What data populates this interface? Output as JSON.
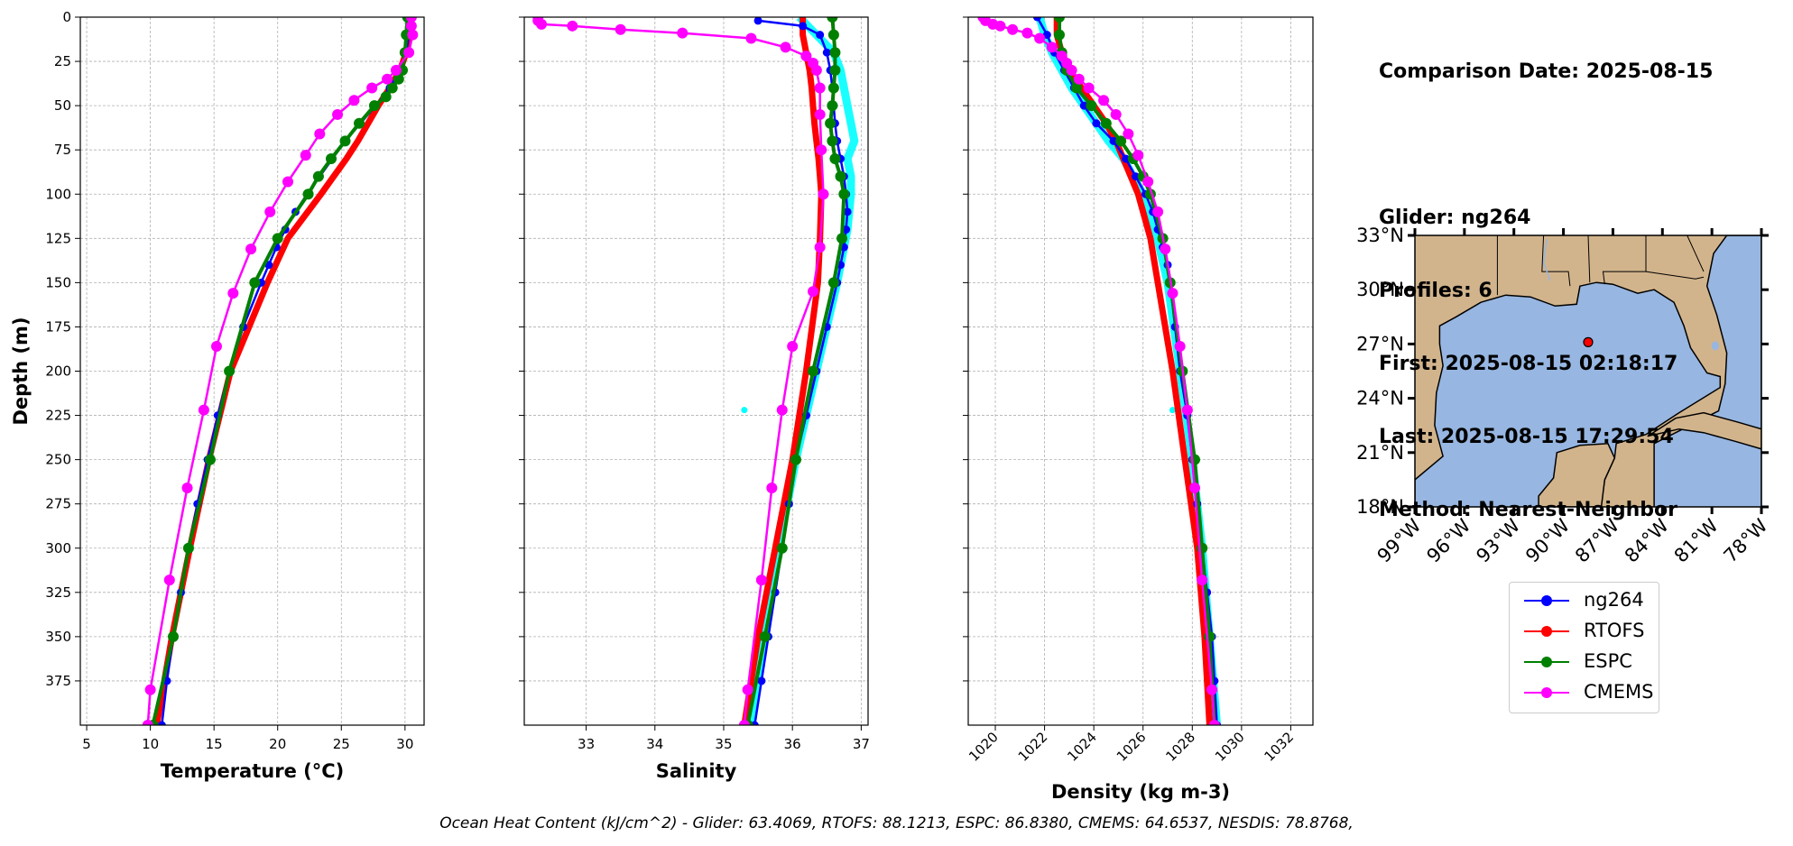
{
  "info": {
    "comparison_date": "Comparison Date: 2025-08-15",
    "glider": "Glider: ng264",
    "profiles": "Profiles: 6",
    "first": "First: 2025-08-15 02:18:17",
    "last": "Last: 2025-08-15 17:29:54",
    "method": "Method: Nearest-Neighbor"
  },
  "footer": "Ocean Heat Content (kJ/cm^2) - Glider: 63.4069,  RTOFS: 88.1213,  ESPC: 86.8380,  CMEMS: 64.6537,  NESDIS: 78.8768,",
  "legend": [
    {
      "label": "ng264",
      "color": "#0000ff"
    },
    {
      "label": "RTOFS",
      "color": "#ff0000"
    },
    {
      "label": "ESPC",
      "color": "#008000"
    },
    {
      "label": "CMEMS",
      "color": "#ff00ff"
    }
  ],
  "colors": {
    "glider_profiles": "#00ffff",
    "land": "#d2b48c",
    "ocean": "#97b6e1",
    "grid": "#b0b0b0",
    "station": "#ff0000"
  },
  "chart_data": [
    {
      "type": "line",
      "title": "",
      "xlabel": "Temperature (°C)",
      "ylabel": "Depth (m)",
      "xlim": [
        4.5,
        31.5
      ],
      "ylim": [
        400,
        0
      ],
      "xticks": [
        5,
        10,
        15,
        20,
        25,
        30
      ],
      "yticks": [
        0,
        25,
        50,
        75,
        100,
        125,
        150,
        175,
        200,
        225,
        250,
        275,
        300,
        325,
        350,
        375
      ],
      "grid": true,
      "series": [
        {
          "name": "ng264",
          "depth": [
            0,
            10,
            20,
            30,
            40,
            50,
            60,
            70,
            80,
            90,
            100,
            110,
            120,
            130,
            140,
            150,
            175,
            200,
            225,
            250,
            275,
            300,
            325,
            350,
            375,
            400
          ],
          "values": [
            30.4,
            30.3,
            30.1,
            29.6,
            28.8,
            27.7,
            26.5,
            25.3,
            24.3,
            23.3,
            22.3,
            21.4,
            20.6,
            19.9,
            19.3,
            18.7,
            17.3,
            16.2,
            15.3,
            14.5,
            13.7,
            13.0,
            12.4,
            11.8,
            11.3,
            10.9
          ]
        },
        {
          "name": "RTOFS",
          "depth": [
            0,
            10,
            20,
            30,
            40,
            50,
            60,
            70,
            80,
            90,
            100,
            125,
            150,
            200,
            250,
            300,
            350,
            400
          ],
          "values": [
            30.3,
            30.3,
            30.1,
            29.6,
            28.8,
            27.9,
            27.1,
            26.3,
            25.4,
            24.4,
            23.4,
            20.8,
            19.2,
            16.3,
            14.6,
            13.1,
            11.7,
            10.5
          ]
        },
        {
          "name": "ESPC",
          "depth": [
            0,
            10,
            20,
            30,
            35,
            40,
            45,
            50,
            60,
            70,
            80,
            90,
            100,
            125,
            150,
            200,
            250,
            300,
            350,
            400
          ],
          "values": [
            30.2,
            30.1,
            30.0,
            29.8,
            29.5,
            29.0,
            28.5,
            27.6,
            26.4,
            25.3,
            24.2,
            23.2,
            22.4,
            20.0,
            18.2,
            16.2,
            14.7,
            13.0,
            11.8,
            10.2
          ]
        },
        {
          "name": "CMEMS",
          "depth": [
            0,
            5,
            10,
            20,
            30,
            35,
            40,
            47,
            55,
            66,
            78,
            93,
            110,
            131,
            156,
            186,
            222,
            266,
            318,
            380,
            400
          ],
          "values": [
            30.5,
            30.5,
            30.6,
            30.3,
            29.3,
            28.6,
            27.4,
            26.0,
            24.7,
            23.3,
            22.2,
            20.8,
            19.4,
            17.9,
            16.5,
            15.2,
            14.2,
            12.9,
            11.5,
            10.0,
            9.8
          ]
        }
      ]
    },
    {
      "type": "line",
      "title": "",
      "xlabel": "Salinity",
      "ylabel": "",
      "xlim": [
        32.1,
        37.1
      ],
      "ylim": [
        400,
        0
      ],
      "xticks": [
        33,
        34,
        35,
        36,
        37
      ],
      "yticks": [
        0,
        25,
        50,
        75,
        100,
        125,
        150,
        175,
        200,
        225,
        250,
        275,
        300,
        325,
        350,
        375
      ],
      "grid": true,
      "series": [
        {
          "name": "ng264",
          "depth": [
            2,
            5,
            10,
            20,
            30,
            40,
            50,
            60,
            70,
            80,
            90,
            100,
            110,
            120,
            130,
            140,
            150,
            175,
            200,
            225,
            250,
            275,
            300,
            325,
            350,
            375,
            400
          ],
          "values": [
            35.5,
            36.15,
            36.4,
            36.5,
            36.55,
            36.58,
            36.6,
            36.62,
            36.65,
            36.7,
            36.75,
            36.78,
            36.8,
            36.78,
            36.75,
            36.7,
            36.65,
            36.5,
            36.35,
            36.2,
            36.05,
            35.95,
            35.85,
            35.75,
            35.65,
            35.55,
            35.45
          ]
        },
        {
          "name": "RTOFS",
          "depth": [
            0,
            10,
            20,
            30,
            40,
            50,
            60,
            70,
            80,
            90,
            100,
            125,
            150,
            200,
            250,
            300,
            350,
            400
          ],
          "values": [
            36.15,
            36.15,
            36.2,
            36.25,
            36.28,
            36.3,
            36.32,
            36.35,
            36.38,
            36.4,
            36.42,
            36.4,
            36.37,
            36.2,
            36.0,
            35.75,
            35.5,
            35.3
          ]
        },
        {
          "name": "ESPC",
          "depth": [
            0,
            10,
            20,
            30,
            40,
            50,
            60,
            70,
            80,
            90,
            100,
            125,
            150,
            200,
            250,
            300,
            350,
            400
          ],
          "values": [
            36.58,
            36.6,
            36.62,
            36.62,
            36.6,
            36.58,
            36.55,
            36.58,
            36.62,
            36.7,
            36.75,
            36.72,
            36.6,
            36.3,
            36.05,
            35.85,
            35.6,
            35.35
          ]
        },
        {
          "name": "CMEMS",
          "depth": [
            0,
            2,
            4,
            5,
            7,
            9,
            12,
            17,
            22,
            26,
            30,
            40,
            55,
            75,
            100,
            130,
            155,
            186,
            222,
            266,
            318,
            380,
            400
          ],
          "values": [
            32.3,
            32.3,
            32.35,
            32.8,
            33.5,
            34.4,
            35.4,
            35.9,
            36.2,
            36.3,
            36.35,
            36.4,
            36.4,
            36.42,
            36.45,
            36.4,
            36.3,
            36.0,
            35.85,
            35.7,
            35.55,
            35.35,
            35.3
          ]
        },
        {
          "name": "glider profiles",
          "depth": [
            0,
            10,
            20,
            30,
            40,
            50,
            60,
            70,
            80,
            90,
            100,
            120,
            150,
            200,
            222,
            250,
            300,
            350,
            400
          ],
          "values": [
            36.1,
            36.35,
            36.6,
            36.7,
            36.75,
            36.8,
            36.85,
            36.9,
            36.8,
            36.85,
            36.85,
            36.8,
            36.65,
            36.35,
            35.3,
            36.05,
            35.8,
            35.6,
            35.4
          ]
        }
      ]
    },
    {
      "type": "line",
      "title": "",
      "xlabel": "Density (kg m-3)",
      "ylabel": "",
      "xlim": [
        1018.9,
        1032.9
      ],
      "ylim": [
        400,
        0
      ],
      "xticks": [
        1020,
        1022,
        1024,
        1026,
        1028,
        1030,
        1032
      ],
      "yticks": [
        0,
        25,
        50,
        75,
        100,
        125,
        150,
        175,
        200,
        225,
        250,
        275,
        300,
        325,
        350,
        375
      ],
      "grid": true,
      "series": [
        {
          "name": "ng264",
          "depth": [
            0,
            10,
            20,
            30,
            40,
            50,
            60,
            70,
            80,
            90,
            100,
            110,
            120,
            130,
            140,
            150,
            175,
            200,
            225,
            250,
            275,
            300,
            325,
            350,
            375,
            400
          ],
          "values": [
            1021.7,
            1022.1,
            1022.4,
            1022.8,
            1023.2,
            1023.6,
            1024.1,
            1024.8,
            1025.3,
            1025.7,
            1026.1,
            1026.4,
            1026.6,
            1026.8,
            1027.0,
            1027.1,
            1027.3,
            1027.5,
            1027.8,
            1028.0,
            1028.2,
            1028.4,
            1028.6,
            1028.8,
            1028.9,
            1029.0
          ]
        },
        {
          "name": "RTOFS",
          "depth": [
            0,
            10,
            20,
            30,
            40,
            50,
            60,
            70,
            80,
            90,
            100,
            125,
            150,
            200,
            250,
            300,
            350,
            400
          ],
          "values": [
            1022.5,
            1022.5,
            1022.7,
            1023.0,
            1023.5,
            1024.0,
            1024.5,
            1024.9,
            1025.2,
            1025.5,
            1025.8,
            1026.3,
            1026.6,
            1027.2,
            1027.7,
            1028.2,
            1028.5,
            1028.7
          ]
        },
        {
          "name": "ESPC",
          "depth": [
            0,
            10,
            20,
            30,
            40,
            50,
            60,
            70,
            80,
            90,
            100,
            125,
            150,
            200,
            250,
            300,
            350,
            400
          ],
          "values": [
            1022.6,
            1022.6,
            1022.7,
            1022.9,
            1023.3,
            1023.9,
            1024.5,
            1025.1,
            1025.6,
            1026.0,
            1026.3,
            1026.8,
            1027.1,
            1027.6,
            1028.1,
            1028.4,
            1028.7,
            1028.9
          ]
        },
        {
          "name": "CMEMS",
          "depth": [
            0,
            2,
            4,
            5,
            7,
            9,
            12,
            17,
            22,
            26,
            30,
            35,
            40,
            47,
            55,
            66,
            78,
            93,
            110,
            131,
            156,
            186,
            222,
            266,
            318,
            380,
            400
          ],
          "values": [
            1019.5,
            1019.6,
            1019.9,
            1020.2,
            1020.7,
            1021.3,
            1021.8,
            1022.3,
            1022.7,
            1022.9,
            1023.1,
            1023.4,
            1023.8,
            1024.4,
            1024.9,
            1025.4,
            1025.8,
            1026.2,
            1026.6,
            1026.9,
            1027.2,
            1027.5,
            1027.8,
            1028.1,
            1028.4,
            1028.8,
            1028.9
          ]
        },
        {
          "name": "glider profiles",
          "depth": [
            0,
            10,
            20,
            30,
            40,
            50,
            60,
            70,
            80,
            90,
            100,
            120,
            150,
            200,
            222,
            250,
            300,
            350,
            400
          ],
          "values": [
            1021.8,
            1022.0,
            1022.3,
            1022.7,
            1023.1,
            1023.6,
            1024.1,
            1024.6,
            1025.2,
            1025.6,
            1026.0,
            1026.5,
            1027.0,
            1027.5,
            1027.2,
            1028.0,
            1028.4,
            1028.7,
            1029.0
          ]
        }
      ]
    },
    {
      "type": "map",
      "title": "",
      "lon_range": [
        -99,
        -78
      ],
      "lat_range": [
        18,
        33
      ],
      "xticks": [
        "99°W",
        "96°W",
        "93°W",
        "90°W",
        "87°W",
        "84°W",
        "81°W",
        "78°W"
      ],
      "yticks": [
        "18°N",
        "21°N",
        "24°N",
        "27°N",
        "30°N",
        "33°N"
      ],
      "station": {
        "lon": -88.5,
        "lat": 27.1
      }
    }
  ]
}
